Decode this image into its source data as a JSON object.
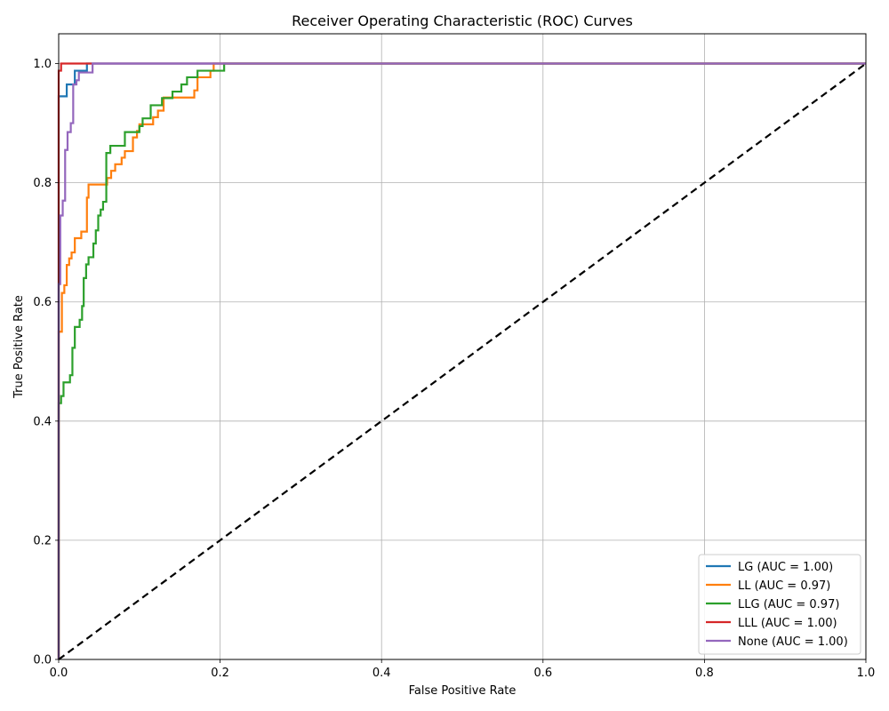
{
  "chart_data": {
    "type": "line",
    "title": "Receiver Operating Characteristic (ROC) Curves",
    "xlabel": "False Positive Rate",
    "ylabel": "True Positive Rate",
    "xlim": [
      0.0,
      1.0
    ],
    "ylim": [
      0.0,
      1.05
    ],
    "xticks": [
      "0.0",
      "0.2",
      "0.4",
      "0.6",
      "0.8",
      "1.0"
    ],
    "yticks": [
      "0.0",
      "0.2",
      "0.4",
      "0.6",
      "0.8",
      "1.0"
    ],
    "grid": true,
    "legend_position": "lower-right",
    "series": [
      {
        "name": "LG (AUC = 1.00)",
        "color": "#1f77b4",
        "points": [
          [
            0,
            0
          ],
          [
            0,
            0.945
          ],
          [
            0.01,
            0.945
          ],
          [
            0.01,
            0.965
          ],
          [
            0.02,
            0.965
          ],
          [
            0.02,
            0.988
          ],
          [
            0.035,
            0.988
          ],
          [
            0.035,
            1.0
          ],
          [
            1.0,
            1.0
          ]
        ]
      },
      {
        "name": "LL (AUC = 0.97)",
        "color": "#ff7f0e",
        "points": [
          [
            0,
            0
          ],
          [
            0,
            0.55
          ],
          [
            0.004,
            0.55
          ],
          [
            0.004,
            0.615
          ],
          [
            0.007,
            0.615
          ],
          [
            0.007,
            0.628
          ],
          [
            0.01,
            0.628
          ],
          [
            0.01,
            0.662
          ],
          [
            0.013,
            0.662
          ],
          [
            0.013,
            0.673
          ],
          [
            0.016,
            0.673
          ],
          [
            0.016,
            0.683
          ],
          [
            0.02,
            0.683
          ],
          [
            0.02,
            0.707
          ],
          [
            0.028,
            0.707
          ],
          [
            0.028,
            0.718
          ],
          [
            0.035,
            0.718
          ],
          [
            0.035,
            0.775
          ],
          [
            0.037,
            0.775
          ],
          [
            0.037,
            0.797
          ],
          [
            0.06,
            0.797
          ],
          [
            0.06,
            0.808
          ],
          [
            0.065,
            0.808
          ],
          [
            0.065,
            0.82
          ],
          [
            0.07,
            0.82
          ],
          [
            0.07,
            0.831
          ],
          [
            0.078,
            0.831
          ],
          [
            0.078,
            0.842
          ],
          [
            0.082,
            0.842
          ],
          [
            0.082,
            0.853
          ],
          [
            0.092,
            0.853
          ],
          [
            0.092,
            0.876
          ],
          [
            0.097,
            0.876
          ],
          [
            0.097,
            0.887
          ],
          [
            0.1,
            0.887
          ],
          [
            0.1,
            0.898
          ],
          [
            0.117,
            0.898
          ],
          [
            0.117,
            0.91
          ],
          [
            0.123,
            0.91
          ],
          [
            0.123,
            0.921
          ],
          [
            0.13,
            0.921
          ],
          [
            0.13,
            0.943
          ],
          [
            0.168,
            0.943
          ],
          [
            0.168,
            0.955
          ],
          [
            0.172,
            0.955
          ],
          [
            0.172,
            0.977
          ],
          [
            0.188,
            0.977
          ],
          [
            0.188,
            0.988
          ],
          [
            0.192,
            0.988
          ],
          [
            0.192,
            1.0
          ],
          [
            1.0,
            1.0
          ]
        ]
      },
      {
        "name": "LLG (AUC = 0.97)",
        "color": "#2ca02c",
        "points": [
          [
            0,
            0
          ],
          [
            0,
            0.43
          ],
          [
            0.003,
            0.43
          ],
          [
            0.003,
            0.442
          ],
          [
            0.006,
            0.442
          ],
          [
            0.006,
            0.465
          ],
          [
            0.014,
            0.465
          ],
          [
            0.014,
            0.477
          ],
          [
            0.017,
            0.477
          ],
          [
            0.017,
            0.523
          ],
          [
            0.02,
            0.523
          ],
          [
            0.02,
            0.558
          ],
          [
            0.026,
            0.558
          ],
          [
            0.026,
            0.57
          ],
          [
            0.029,
            0.57
          ],
          [
            0.029,
            0.593
          ],
          [
            0.031,
            0.593
          ],
          [
            0.031,
            0.64
          ],
          [
            0.034,
            0.64
          ],
          [
            0.034,
            0.663
          ],
          [
            0.037,
            0.663
          ],
          [
            0.037,
            0.675
          ],
          [
            0.043,
            0.675
          ],
          [
            0.043,
            0.698
          ],
          [
            0.046,
            0.698
          ],
          [
            0.046,
            0.72
          ],
          [
            0.049,
            0.72
          ],
          [
            0.049,
            0.745
          ],
          [
            0.052,
            0.745
          ],
          [
            0.052,
            0.755
          ],
          [
            0.055,
            0.755
          ],
          [
            0.055,
            0.768
          ],
          [
            0.059,
            0.768
          ],
          [
            0.059,
            0.85
          ],
          [
            0.064,
            0.85
          ],
          [
            0.064,
            0.862
          ],
          [
            0.082,
            0.862
          ],
          [
            0.082,
            0.885
          ],
          [
            0.1,
            0.885
          ],
          [
            0.1,
            0.895
          ],
          [
            0.104,
            0.895
          ],
          [
            0.104,
            0.908
          ],
          [
            0.114,
            0.908
          ],
          [
            0.114,
            0.93
          ],
          [
            0.128,
            0.93
          ],
          [
            0.128,
            0.942
          ],
          [
            0.141,
            0.942
          ],
          [
            0.141,
            0.953
          ],
          [
            0.152,
            0.953
          ],
          [
            0.152,
            0.965
          ],
          [
            0.159,
            0.965
          ],
          [
            0.159,
            0.977
          ],
          [
            0.172,
            0.977
          ],
          [
            0.172,
            0.988
          ],
          [
            0.205,
            0.988
          ],
          [
            0.205,
            1.0
          ],
          [
            1.0,
            1.0
          ]
        ]
      },
      {
        "name": "LLL (AUC = 1.00)",
        "color": "#d62728",
        "points": [
          [
            0,
            0
          ],
          [
            0,
            0.988
          ],
          [
            0.003,
            0.988
          ],
          [
            0.003,
            1.0
          ],
          [
            1.0,
            1.0
          ]
        ]
      },
      {
        "name": "None (AUC = 1.00)",
        "color": "#9467bd",
        "points": [
          [
            0,
            0
          ],
          [
            0,
            0.63
          ],
          [
            0.002,
            0.63
          ],
          [
            0.002,
            0.745
          ],
          [
            0.005,
            0.745
          ],
          [
            0.005,
            0.77
          ],
          [
            0.008,
            0.77
          ],
          [
            0.008,
            0.855
          ],
          [
            0.011,
            0.855
          ],
          [
            0.011,
            0.885
          ],
          [
            0.015,
            0.885
          ],
          [
            0.015,
            0.9
          ],
          [
            0.018,
            0.9
          ],
          [
            0.018,
            0.965
          ],
          [
            0.022,
            0.965
          ],
          [
            0.022,
            0.972
          ],
          [
            0.025,
            0.972
          ],
          [
            0.025,
            0.985
          ],
          [
            0.042,
            0.985
          ],
          [
            0.042,
            1.0
          ],
          [
            1.0,
            1.0
          ]
        ]
      }
    ],
    "reference_line": {
      "points": [
        [
          0,
          0
        ],
        [
          1,
          1
        ]
      ],
      "color": "#000000",
      "style": "dashed"
    }
  }
}
